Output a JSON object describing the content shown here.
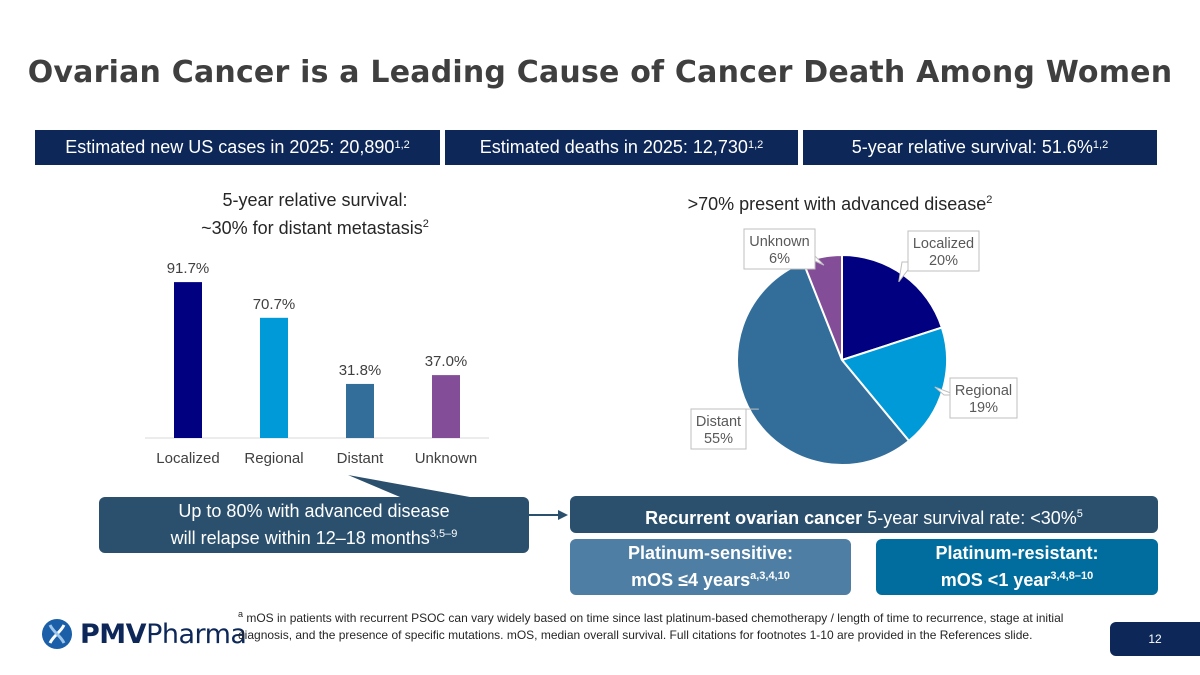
{
  "title": "Ovarian Cancer is a Leading Cause of Cancer Death Among Women",
  "stats": [
    {
      "text": "Estimated new US cases in 2025: 20,890",
      "sup": "1,2"
    },
    {
      "text": "Estimated deaths in 2025: 12,730",
      "sup": "1,2"
    },
    {
      "text": "5-year relative survival: 51.6%",
      "sup": "1,2"
    }
  ],
  "bar_subtitle": {
    "line1": "5-year relative survival:",
    "line2": "~30% for distant metastasis",
    "sup": "2"
  },
  "pie_subtitle": {
    "text": ">70% present with advanced disease",
    "sup": "2"
  },
  "colors": {
    "navy": "#0d2858",
    "localized": "#000080",
    "regional": "#009ad9",
    "distant": "#336e9b",
    "unknown": "#844d98"
  },
  "chart_data": [
    {
      "type": "bar",
      "categories": [
        "Localized",
        "Regional",
        "Distant",
        "Unknown"
      ],
      "values": [
        91.7,
        70.7,
        31.8,
        37.0
      ],
      "labels": [
        "91.7%",
        "70.7%",
        "31.8%",
        "37.0%"
      ],
      "colors": [
        "#000080",
        "#009ad9",
        "#336e9b",
        "#844d98"
      ],
      "ylim": [
        0,
        100
      ]
    },
    {
      "type": "pie",
      "categories": [
        "Localized",
        "Regional",
        "Distant",
        "Unknown"
      ],
      "values": [
        20,
        19,
        55,
        6
      ],
      "labels": [
        "20%",
        "19%",
        "55%",
        "6%"
      ],
      "colors": [
        "#000080",
        "#009ad9",
        "#336e9b",
        "#844d98"
      ]
    }
  ],
  "callout": {
    "line1": "Up to 80% with advanced disease",
    "line2": "will relapse within 12–18 months",
    "sup": "3,5–9"
  },
  "recurrent": {
    "bold": "Recurrent ovarian cancer",
    "text": " 5-year survival rate: <30%",
    "sup": "5"
  },
  "platinum_sensitive": {
    "line1": "Platinum-sensitive:",
    "line2": "mOS ≤4 years",
    "sup": "a,3,4,10"
  },
  "platinum_resistant": {
    "line1": "Platinum-resistant:",
    "line2": "mOS <1 year",
    "sup": "3,4,8–10"
  },
  "footnote": {
    "sup": "a",
    "text": " mOS in patients with recurrent PSOC can vary widely based on time since last platinum-based chemotherapy / length of time to recurrence, stage at initial diagnosis, and the presence of specific mutations. mOS, median overall survival. Full citations for footnotes 1-10 are provided in the References slide."
  },
  "logo": {
    "bold": "PMV",
    "text": "Pharma"
  },
  "page_number": "12"
}
